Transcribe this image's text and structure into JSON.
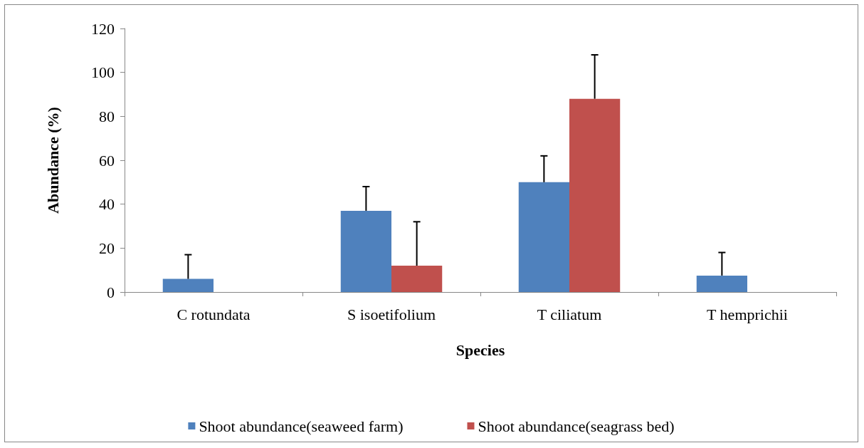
{
  "chart_data": {
    "type": "bar",
    "xlabel": "Species",
    "ylabel": "Abundance (%)",
    "categories": [
      "C rotundata",
      "S isoetifolium",
      "T ciliatum",
      "T hemprichii"
    ],
    "series": [
      {
        "name": "Shoot abundance(seaweed farm)",
        "color": "#4f81bd",
        "values": [
          6,
          37,
          50,
          7.5
        ],
        "errors": [
          [
            6,
            17
          ],
          [
            37,
            48
          ],
          [
            50,
            62
          ],
          [
            7.5,
            18
          ]
        ]
      },
      {
        "name": "Shoot abundance(seagrass bed)",
        "color": "#c0504d",
        "values": [
          null,
          12,
          88,
          null
        ],
        "errors": [
          null,
          [
            12,
            32
          ],
          [
            88,
            108
          ],
          null
        ]
      }
    ],
    "ylim": [
      0,
      120
    ],
    "yticks": [
      0,
      20,
      40,
      60,
      80,
      100,
      120
    ],
    "grid": false,
    "legend": "bottom"
  }
}
